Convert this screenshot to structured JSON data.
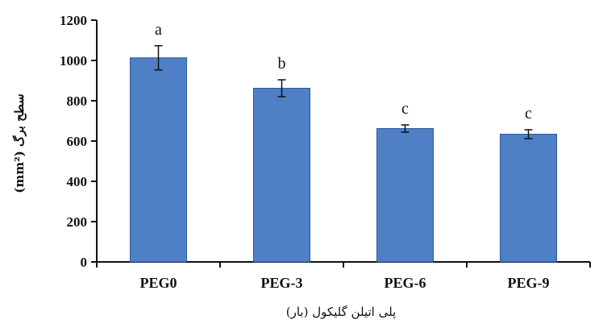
{
  "chart_data": {
    "type": "bar",
    "categories": [
      "PEG0",
      "PEG-3",
      "PEG-6",
      "PEG-9"
    ],
    "values": [
      1013,
      862,
      662,
      634
    ],
    "errors": [
      60,
      42,
      18,
      22
    ],
    "labels": [
      "a",
      "b",
      "c",
      "c"
    ],
    "xlabel": "پلی اتیلن گلیکول (بار)",
    "ylabel": "سطح برگ (mm²)",
    "ylim": [
      0,
      1200
    ],
    "yticks": [
      0,
      200,
      400,
      600,
      800,
      1000,
      1200
    ],
    "grid": false,
    "bar_color": "#4f7fc4",
    "bar_edge_color": "#2e5a96"
  }
}
